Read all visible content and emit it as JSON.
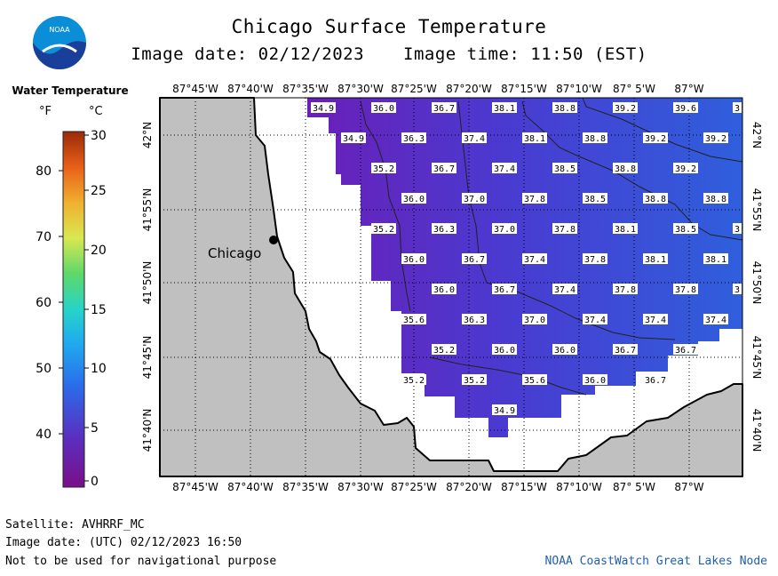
{
  "header": {
    "title": "Chicago Surface Temperature",
    "image_date": "Image date: 02/12/2023",
    "image_time": "Image time: 11:50 (EST)"
  },
  "logo": {
    "text": "NOAA"
  },
  "legend": {
    "title": "Water Temperature",
    "unit_f": "°F",
    "unit_c": "°C",
    "f_ticks": [
      "80",
      "70",
      "60",
      "50",
      "40"
    ],
    "c_ticks": [
      "30",
      "25",
      "20",
      "15",
      "10",
      "5",
      "0"
    ]
  },
  "map": {
    "lon_labels": [
      "87°45'W",
      "87°40'W",
      "87°35'W",
      "87°30'W",
      "87°25'W",
      "87°20'W",
      "87°15'W",
      "87°10'W",
      "87° 5'W",
      "87°W"
    ],
    "lat_labels": [
      "42°N",
      "41°55'N",
      "41°50'N",
      "41°45'N",
      "41°40'N"
    ],
    "city_label": "Chicago",
    "temps": [
      {
        "v": "34.9"
      },
      {
        "v": "36.0"
      },
      {
        "v": "36.7"
      },
      {
        "v": "38.1"
      },
      {
        "v": "38.8"
      },
      {
        "v": "39.2"
      },
      {
        "v": "39.6"
      },
      {
        "v": "3"
      },
      {
        "v": "34.9"
      },
      {
        "v": "36.3"
      },
      {
        "v": "37.4"
      },
      {
        "v": "38.1"
      },
      {
        "v": "38.8"
      },
      {
        "v": "39.2"
      },
      {
        "v": "39.2"
      },
      {
        "v": "35.2"
      },
      {
        "v": "36.7"
      },
      {
        "v": "37.4"
      },
      {
        "v": "38.5"
      },
      {
        "v": "38.8"
      },
      {
        "v": "39.2"
      },
      {
        "v": "36.0"
      },
      {
        "v": "37.0"
      },
      {
        "v": "37.8"
      },
      {
        "v": "38.5"
      },
      {
        "v": "38.8"
      },
      {
        "v": "38.8"
      },
      {
        "v": "35.2"
      },
      {
        "v": "36.3"
      },
      {
        "v": "37.0"
      },
      {
        "v": "37.8"
      },
      {
        "v": "38.1"
      },
      {
        "v": "38.5"
      },
      {
        "v": "3"
      },
      {
        "v": "36.0"
      },
      {
        "v": "36.7"
      },
      {
        "v": "37.4"
      },
      {
        "v": "37.8"
      },
      {
        "v": "38.1"
      },
      {
        "v": "38.1"
      },
      {
        "v": "36.0"
      },
      {
        "v": "36.7"
      },
      {
        "v": "37.4"
      },
      {
        "v": "37.8"
      },
      {
        "v": "37.8"
      },
      {
        "v": "3"
      },
      {
        "v": "35.6"
      },
      {
        "v": "36.3"
      },
      {
        "v": "37.0"
      },
      {
        "v": "37.4"
      },
      {
        "v": "37.4"
      },
      {
        "v": "37.4"
      },
      {
        "v": "35.2"
      },
      {
        "v": "36.0"
      },
      {
        "v": "36.0"
      },
      {
        "v": "36.7"
      },
      {
        "v": "36.7"
      },
      {
        "v": "35.2"
      },
      {
        "v": "35.2"
      },
      {
        "v": "35.6"
      },
      {
        "v": "36.0"
      },
      {
        "v": "36.7"
      },
      {
        "v": "34.9"
      }
    ],
    "colors": {
      "land": "#c0c0c0",
      "water_cold": "#6a1fb8",
      "water_warm": "#2f5fdc",
      "ice_nodata": "#ffffff"
    }
  },
  "footer": {
    "satellite": "Satellite: AVHRRF_MC",
    "utc_date": "Image date: (UTC) 02/12/2023  16:50",
    "disclaimer": "Not to be used for navigational purpose",
    "credit": "NOAA CoastWatch Great Lakes Node"
  }
}
